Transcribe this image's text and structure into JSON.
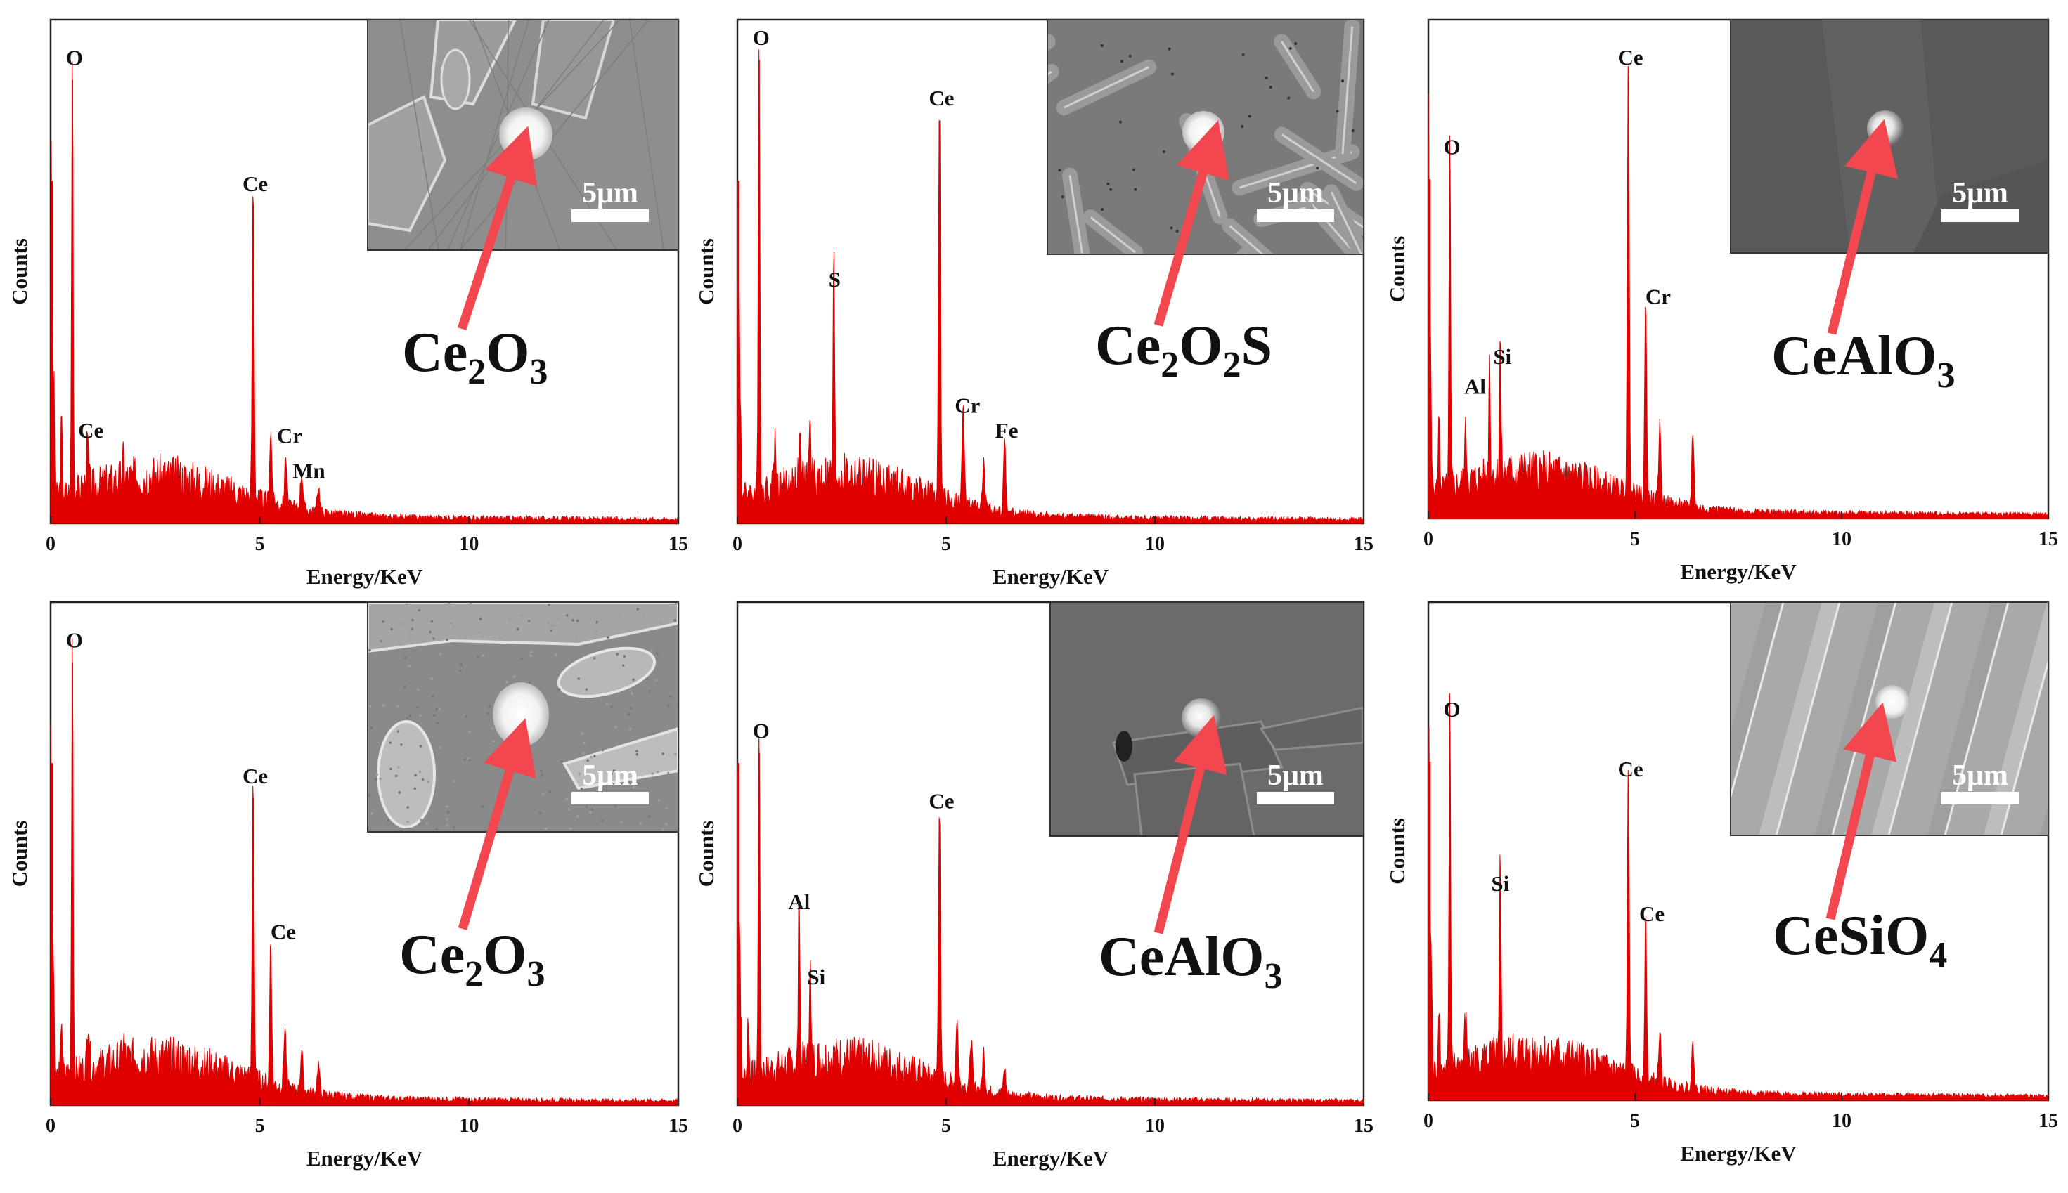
{
  "colors": {
    "spectrum": "#e00000",
    "arrow": "#f2474f",
    "frame": "#222222"
  },
  "chart_data": [
    {
      "type": "area",
      "xlabel": "Energy/KeV",
      "ylabel": "Counts",
      "xlim": [
        0,
        15
      ],
      "x_ticks": [
        0,
        5,
        10,
        15
      ],
      "y_ticks": [],
      "grid": false,
      "ylim": [
        0,
        100
      ],
      "baseline": 0,
      "compound": {
        "main": "Ce",
        "parts": [
          {
            "t": "Ce"
          },
          {
            "sub": "2"
          },
          {
            "t": "O"
          },
          {
            "sub": "3"
          }
        ]
      },
      "scale_bar": "5μm",
      "inset_theme": "light-grains",
      "peaks": [
        {
          "x": 0.52,
          "y": 88,
          "w": 0.04,
          "label": "O"
        },
        {
          "x": 4.84,
          "y": 63,
          "w": 0.05,
          "label": "Ce"
        },
        {
          "x": 0.26,
          "y": 15,
          "w": 0.04,
          "label": "Ce"
        },
        {
          "x": 0.88,
          "y": 9,
          "w": 0.06,
          "label": ""
        },
        {
          "x": 5.26,
          "y": 14,
          "w": 0.06,
          "label": "Cr"
        },
        {
          "x": 5.62,
          "y": 10,
          "w": 0.06,
          "label": "Mn"
        },
        {
          "x": 6.0,
          "y": 7,
          "w": 0.07,
          "label": ""
        },
        {
          "x": 6.4,
          "y": 5,
          "w": 0.07,
          "label": ""
        },
        {
          "x": 1.74,
          "y": 4,
          "w": 0.05,
          "label": ""
        }
      ],
      "peak_label_offsets": [
        [
          0.05,
          3
        ],
        [
          0.05,
          3
        ],
        [
          0.7,
          2
        ],
        [
          0,
          0
        ],
        [
          0.45,
          2
        ],
        [
          0.55,
          -1
        ],
        [
          0,
          0
        ],
        [
          0,
          0
        ],
        [
          0,
          0
        ]
      ]
    },
    {
      "type": "area",
      "xlabel": "Energy/KeV",
      "ylabel": "Counts",
      "xlim": [
        0,
        15
      ],
      "x_ticks": [
        0,
        5,
        10,
        15
      ],
      "y_ticks": [],
      "grid": false,
      "ylim": [
        0,
        100
      ],
      "baseline": 0,
      "compound": {
        "main": "Ce",
        "parts": [
          {
            "t": "Ce"
          },
          {
            "sub": "2"
          },
          {
            "t": "O"
          },
          {
            "sub": "2"
          },
          {
            "t": "S"
          }
        ]
      },
      "scale_bar": "5μm",
      "inset_theme": "needles",
      "peaks": [
        {
          "x": 0.52,
          "y": 92,
          "w": 0.04,
          "label": "O"
        },
        {
          "x": 4.84,
          "y": 80,
          "w": 0.05,
          "label": "Ce"
        },
        {
          "x": 2.31,
          "y": 44,
          "w": 0.04,
          "label": "S"
        },
        {
          "x": 5.41,
          "y": 19,
          "w": 0.06,
          "label": "Cr"
        },
        {
          "x": 6.4,
          "y": 14,
          "w": 0.06,
          "label": "Fe"
        },
        {
          "x": 1.74,
          "y": 10,
          "w": 0.05,
          "label": ""
        },
        {
          "x": 0.9,
          "y": 9,
          "w": 0.06,
          "label": ""
        },
        {
          "x": 1.5,
          "y": 8,
          "w": 0.05,
          "label": ""
        },
        {
          "x": 5.9,
          "y": 9,
          "w": 0.06,
          "label": ""
        }
      ],
      "peak_label_offsets": [
        [
          0.05,
          3
        ],
        [
          0.05,
          3
        ],
        [
          0.02,
          3
        ],
        [
          0.1,
          3
        ],
        [
          0.05,
          3
        ],
        [
          0,
          0
        ],
        [
          0,
          0
        ],
        [
          0,
          0
        ],
        [
          0,
          0
        ]
      ]
    },
    {
      "type": "area",
      "xlabel": "Energy/KeV",
      "ylabel": "Counts",
      "xlim": [
        0,
        15
      ],
      "x_ticks": [
        0,
        5,
        10,
        15
      ],
      "y_ticks": [],
      "grid": false,
      "ylim": [
        0,
        100
      ],
      "baseline": 0,
      "compound": {
        "main": "CeAlO",
        "parts": [
          {
            "t": "CeAlO"
          },
          {
            "sub": "3"
          }
        ]
      },
      "scale_bar": "5μm",
      "inset_theme": "dark",
      "peaks": [
        {
          "x": 0.52,
          "y": 70,
          "w": 0.04,
          "label": "O"
        },
        {
          "x": 4.84,
          "y": 88,
          "w": 0.05,
          "label": "Ce"
        },
        {
          "x": 5.26,
          "y": 41,
          "w": 0.05,
          "label": "Cr"
        },
        {
          "x": 1.48,
          "y": 24,
          "w": 0.04,
          "label": "Al"
        },
        {
          "x": 1.74,
          "y": 28,
          "w": 0.04,
          "label": "Si"
        },
        {
          "x": 0.9,
          "y": 10,
          "w": 0.06,
          "label": ""
        },
        {
          "x": 5.6,
          "y": 15,
          "w": 0.06,
          "label": ""
        },
        {
          "x": 6.4,
          "y": 15,
          "w": 0.06,
          "label": ""
        },
        {
          "x": 0.26,
          "y": 15,
          "w": 0.04,
          "label": ""
        }
      ],
      "peak_label_offsets": [
        [
          0.05,
          3
        ],
        [
          0.05,
          3
        ],
        [
          0.3,
          2
        ],
        [
          -0.35,
          1
        ],
        [
          0.05,
          3
        ],
        [
          0,
          0
        ],
        [
          0,
          0
        ],
        [
          0,
          0
        ],
        [
          0,
          0
        ]
      ]
    },
    {
      "type": "area",
      "xlabel": "Energy/KeV",
      "ylabel": "Counts",
      "xlim": [
        0,
        15
      ],
      "x_ticks": [
        0,
        5,
        10,
        15
      ],
      "y_ticks": [],
      "grid": false,
      "ylim": [
        0,
        100
      ],
      "baseline": 0,
      "compound": {
        "main": "Ce",
        "parts": [
          {
            "t": "Ce"
          },
          {
            "sub": "2"
          },
          {
            "t": "O"
          },
          {
            "sub": "3"
          }
        ]
      },
      "scale_bar": "5μm",
      "inset_theme": "light-blobs",
      "peaks": [
        {
          "x": 0.52,
          "y": 88,
          "w": 0.04,
          "label": "O"
        },
        {
          "x": 4.84,
          "y": 61,
          "w": 0.05,
          "label": "Ce"
        },
        {
          "x": 5.26,
          "y": 30,
          "w": 0.05,
          "label": "Ce"
        },
        {
          "x": 0.9,
          "y": 10,
          "w": 0.06,
          "label": ""
        },
        {
          "x": 5.6,
          "y": 12,
          "w": 0.06,
          "label": ""
        },
        {
          "x": 6.0,
          "y": 8,
          "w": 0.06,
          "label": ""
        },
        {
          "x": 6.4,
          "y": 6,
          "w": 0.06,
          "label": ""
        },
        {
          "x": 0.26,
          "y": 12,
          "w": 0.04,
          "label": ""
        },
        {
          "x": 1.74,
          "y": 4,
          "w": 0.05,
          "label": ""
        }
      ],
      "peak_label_offsets": [
        [
          0.05,
          3
        ],
        [
          0.05,
          3
        ],
        [
          0.3,
          3
        ],
        [
          0,
          0
        ],
        [
          0,
          0
        ],
        [
          0,
          0
        ],
        [
          0,
          0
        ],
        [
          0,
          0
        ],
        [
          0,
          0
        ]
      ]
    },
    {
      "type": "area",
      "xlabel": "Energy/KeV",
      "ylabel": "Counts",
      "xlim": [
        0,
        15
      ],
      "x_ticks": [
        0,
        5,
        10,
        15
      ],
      "y_ticks": [],
      "grid": false,
      "ylim": [
        0,
        100
      ],
      "baseline": 0,
      "compound": {
        "main": "CeAlO",
        "parts": [
          {
            "t": "CeAlO"
          },
          {
            "sub": "3"
          }
        ]
      },
      "scale_bar": "5μm",
      "inset_theme": "dark-plates",
      "peaks": [
        {
          "x": 0.52,
          "y": 70,
          "w": 0.04,
          "label": "O"
        },
        {
          "x": 4.84,
          "y": 56,
          "w": 0.05,
          "label": "Ce"
        },
        {
          "x": 1.48,
          "y": 36,
          "w": 0.04,
          "label": "Al"
        },
        {
          "x": 1.74,
          "y": 21,
          "w": 0.04,
          "label": "Si"
        },
        {
          "x": 5.26,
          "y": 13,
          "w": 0.06,
          "label": ""
        },
        {
          "x": 5.6,
          "y": 10,
          "w": 0.06,
          "label": ""
        },
        {
          "x": 5.9,
          "y": 8,
          "w": 0.06,
          "label": ""
        },
        {
          "x": 6.4,
          "y": 5,
          "w": 0.06,
          "label": ""
        },
        {
          "x": 0.26,
          "y": 12,
          "w": 0.04,
          "label": ""
        }
      ],
      "peak_label_offsets": [
        [
          0.05,
          3
        ],
        [
          0.05,
          3
        ],
        [
          0,
          3
        ],
        [
          0.15,
          3
        ],
        [
          0,
          0
        ],
        [
          0,
          0
        ],
        [
          0,
          0
        ],
        [
          0,
          0
        ],
        [
          0,
          0
        ]
      ]
    },
    {
      "type": "area",
      "xlabel": "Energy/KeV",
      "ylabel": "Counts",
      "xlim": [
        0,
        15
      ],
      "x_ticks": [
        0,
        5,
        10,
        15
      ],
      "y_ticks": [],
      "grid": false,
      "ylim": [
        0,
        100
      ],
      "baseline": 0,
      "compound": {
        "main": "CeSiO",
        "parts": [
          {
            "t": "CeSiO"
          },
          {
            "sub": "4"
          }
        ]
      },
      "scale_bar": "5μm",
      "inset_theme": "light-stripes",
      "peaks": [
        {
          "x": 0.52,
          "y": 74,
          "w": 0.04,
          "label": "O"
        },
        {
          "x": 4.84,
          "y": 62,
          "w": 0.05,
          "label": "Ce"
        },
        {
          "x": 1.74,
          "y": 39,
          "w": 0.04,
          "label": "Si"
        },
        {
          "x": 5.26,
          "y": 33,
          "w": 0.05,
          "label": "Ce"
        },
        {
          "x": 0.9,
          "y": 9,
          "w": 0.06,
          "label": ""
        },
        {
          "x": 5.6,
          "y": 10,
          "w": 0.06,
          "label": ""
        },
        {
          "x": 6.4,
          "y": 9,
          "w": 0.06,
          "label": ""
        },
        {
          "x": 0.26,
          "y": 15,
          "w": 0.04,
          "label": ""
        }
      ],
      "peak_label_offsets": [
        [
          0.05,
          3
        ],
        [
          0.05,
          3
        ],
        [
          0,
          3
        ],
        [
          0.15,
          3
        ],
        [
          0,
          0
        ],
        [
          0,
          0
        ],
        [
          0,
          0
        ],
        [
          0,
          0
        ]
      ]
    }
  ]
}
